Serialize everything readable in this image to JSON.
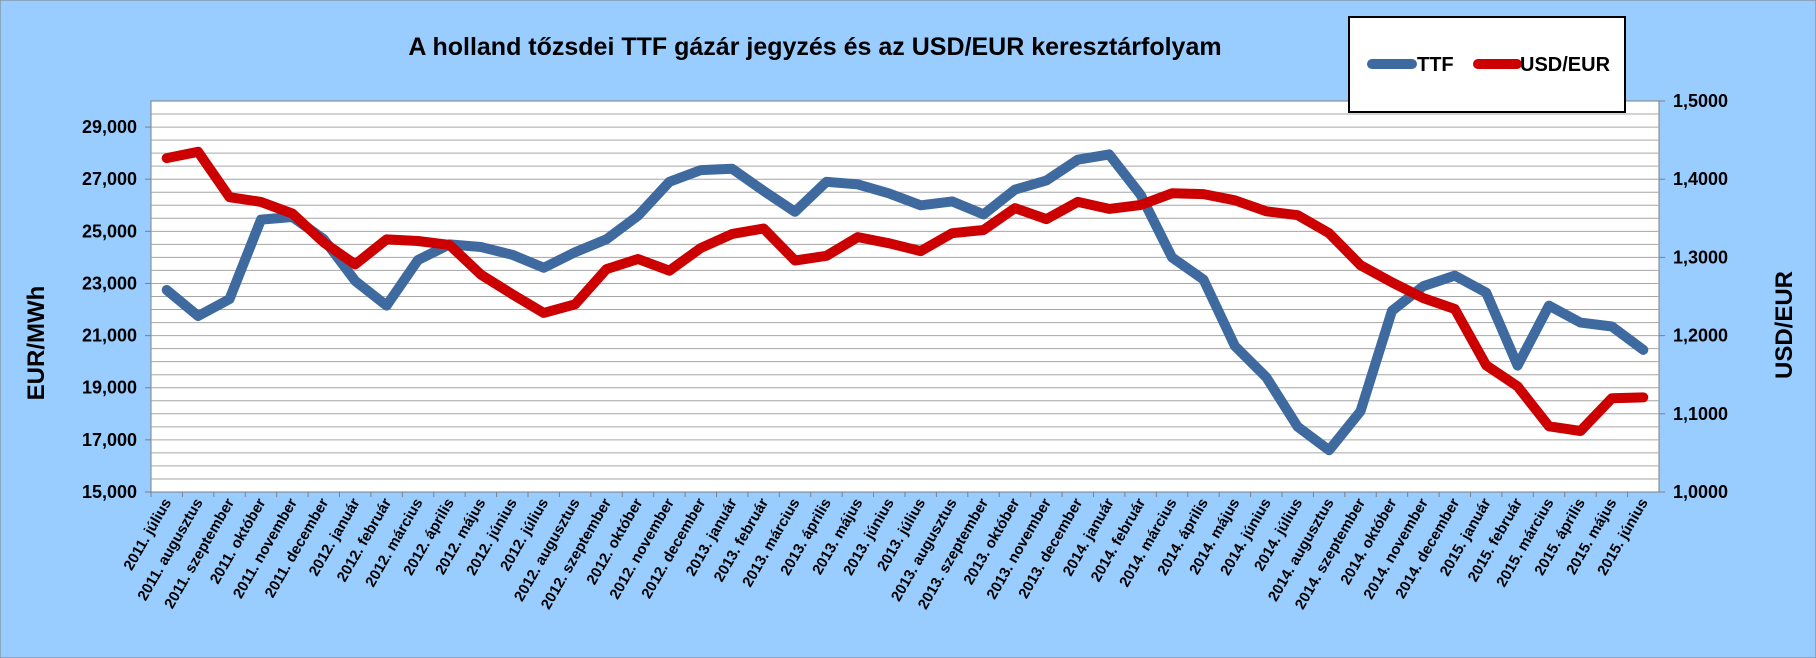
{
  "chart_data": {
    "type": "line",
    "title": "A holland tőzsdei TTF gázár jegyzés és az USD/EUR keresztárfolyam",
    "ylabel_left": "EUR/MWh",
    "ylabel_right": "USD/EUR",
    "ylim_left": [
      15000,
      30000
    ],
    "ylim_right": [
      1.0,
      1.5
    ],
    "yticks_left": [
      "15,000",
      "17,000",
      "19,000",
      "21,000",
      "23,000",
      "25,000",
      "27,000",
      "29,000"
    ],
    "yticks_right": [
      "1,0000",
      "1,1000",
      "1,2000",
      "1,3000",
      "1,4000",
      "1,5000"
    ],
    "grid": true,
    "legend_position": "top-right",
    "colors": {
      "background": "#99CCFF",
      "plot_background": "#FFFFFF",
      "TTF": "#3F6AA0",
      "USD/EUR": "#CC0000"
    },
    "categories": [
      "2011. július",
      "2011. augusztus",
      "2011. szeptember",
      "2011. október",
      "2011. november",
      "2011. december",
      "2012. január",
      "2012. február",
      "2012. március",
      "2012. április",
      "2012. május",
      "2012. június",
      "2012. július",
      "2012. augusztus",
      "2012. szeptember",
      "2012. október",
      "2012. november",
      "2012. december",
      "2013. január",
      "2013. február",
      "2013. március",
      "2013. április",
      "2013. május",
      "2013. június",
      "2013. július",
      "2013. augusztus",
      "2013. szeptember",
      "2013. október",
      "2013. november",
      "2013. december",
      "2014. január",
      "2014. február",
      "2014. március",
      "2014. április",
      "2014. május",
      "2014. június",
      "2014. július",
      "2014. augusztus",
      "2014. szeptember",
      "2014. október",
      "2014. november",
      "2014. december",
      "2015. január",
      "2015. február",
      "2015. március",
      "2015. április",
      "2015. május",
      "2015. június"
    ],
    "series": [
      {
        "name": "TTF",
        "axis": "left",
        "values": [
          22750,
          21750,
          22400,
          25450,
          25550,
          24700,
          23100,
          22150,
          23900,
          24500,
          24400,
          24100,
          23600,
          24200,
          24700,
          25600,
          26900,
          27350,
          27400,
          26550,
          25750,
          26900,
          26800,
          26450,
          26000,
          26150,
          25650,
          26600,
          26950,
          27750,
          27950,
          26400,
          24000,
          23150,
          20600,
          19400,
          17500,
          16600,
          18100,
          21950,
          22900,
          23300,
          22650,
          19850,
          22150,
          21500,
          21350,
          20450
        ]
      },
      {
        "name": "USD/EUR",
        "axis": "right",
        "values": [
          1.427,
          1.435,
          1.377,
          1.371,
          1.356,
          1.319,
          1.291,
          1.323,
          1.321,
          1.316,
          1.278,
          1.253,
          1.229,
          1.24,
          1.285,
          1.298,
          1.283,
          1.312,
          1.33,
          1.337,
          1.296,
          1.302,
          1.326,
          1.318,
          1.308,
          1.331,
          1.335,
          1.363,
          1.349,
          1.371,
          1.362,
          1.367,
          1.382,
          1.381,
          1.373,
          1.359,
          1.354,
          1.331,
          1.29,
          1.268,
          1.248,
          1.234,
          1.162,
          1.135,
          1.084,
          1.078,
          1.12,
          1.121
        ]
      }
    ]
  }
}
